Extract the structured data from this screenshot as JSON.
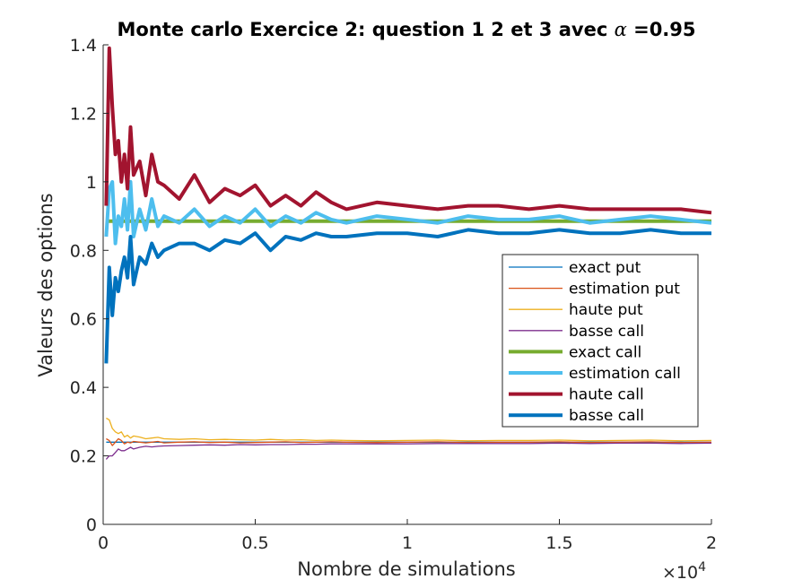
{
  "chart_data": {
    "type": "line",
    "title_prefix": "Monte carlo Exercice 2: question 1 2 et 3 avec ",
    "title_symbol": "α",
    "title_suffix": " =0.95",
    "xlabel": "Nombre de simulations",
    "ylabel": "Valeurs des options",
    "x_multiplier_base": "×10",
    "x_multiplier_exp": "4",
    "xlim": [
      0,
      20000
    ],
    "ylim": [
      0,
      1.4
    ],
    "x_ticks": [
      0,
      5000,
      10000,
      15000,
      20000
    ],
    "x_tick_labels": [
      "0",
      "0.5",
      "1",
      "1.5",
      "2"
    ],
    "y_ticks": [
      0,
      0.2,
      0.4,
      0.6,
      0.8,
      1.0,
      1.2,
      1.4
    ],
    "y_tick_labels": [
      "0",
      "0.2",
      "0.4",
      "0.6",
      "0.8",
      "1",
      "1.2",
      "1.4"
    ],
    "legend_position": "middle-right",
    "x": [
      100,
      200,
      300,
      400,
      500,
      600,
      700,
      800,
      900,
      1000,
      1200,
      1400,
      1600,
      1800,
      2000,
      2500,
      3000,
      3500,
      4000,
      4500,
      5000,
      5500,
      6000,
      6500,
      7000,
      7500,
      8000,
      9000,
      10000,
      11000,
      12000,
      13000,
      14000,
      15000,
      16000,
      17000,
      18000,
      19000,
      20000
    ],
    "series": [
      {
        "name": "exact put",
        "color": "#0072BD",
        "width": 1.3,
        "values": [
          0.24,
          0.24,
          0.24,
          0.24,
          0.24,
          0.24,
          0.24,
          0.24,
          0.24,
          0.24,
          0.24,
          0.24,
          0.24,
          0.24,
          0.24,
          0.24,
          0.24,
          0.24,
          0.24,
          0.24,
          0.24,
          0.24,
          0.24,
          0.24,
          0.24,
          0.24,
          0.24,
          0.24,
          0.24,
          0.24,
          0.24,
          0.24,
          0.24,
          0.24,
          0.24,
          0.24,
          0.24,
          0.24,
          0.24
        ]
      },
      {
        "name": "estimation put",
        "color": "#D95319",
        "width": 1.3,
        "values": [
          0.25,
          0.245,
          0.23,
          0.24,
          0.25,
          0.245,
          0.235,
          0.24,
          0.238,
          0.242,
          0.24,
          0.238,
          0.24,
          0.242,
          0.238,
          0.24,
          0.241,
          0.239,
          0.24,
          0.238,
          0.239,
          0.24,
          0.241,
          0.239,
          0.24,
          0.241,
          0.24,
          0.239,
          0.24,
          0.241,
          0.239,
          0.24,
          0.24,
          0.241,
          0.239,
          0.24,
          0.241,
          0.239,
          0.24
        ]
      },
      {
        "name": "haute put",
        "color": "#EDB120",
        "width": 1.3,
        "values": [
          0.31,
          0.305,
          0.28,
          0.27,
          0.265,
          0.27,
          0.255,
          0.26,
          0.252,
          0.258,
          0.255,
          0.25,
          0.252,
          0.254,
          0.25,
          0.248,
          0.25,
          0.247,
          0.248,
          0.247,
          0.246,
          0.248,
          0.246,
          0.247,
          0.245,
          0.246,
          0.245,
          0.244,
          0.245,
          0.246,
          0.244,
          0.245,
          0.245,
          0.246,
          0.244,
          0.245,
          0.246,
          0.244,
          0.245
        ]
      },
      {
        "name": "basse call",
        "color": "#7E2F8E",
        "width": 1.3,
        "values": [
          0.19,
          0.2,
          0.2,
          0.21,
          0.22,
          0.215,
          0.215,
          0.22,
          0.225,
          0.22,
          0.225,
          0.228,
          0.226,
          0.228,
          0.229,
          0.23,
          0.231,
          0.232,
          0.231,
          0.233,
          0.232,
          0.233,
          0.233,
          0.234,
          0.234,
          0.235,
          0.235,
          0.235,
          0.235,
          0.236,
          0.236,
          0.236,
          0.236,
          0.237,
          0.236,
          0.237,
          0.237,
          0.236,
          0.237
        ]
      },
      {
        "name": "exact call",
        "color": "#77AC30",
        "width": 4,
        "values": [
          0.885,
          0.885,
          0.885,
          0.885,
          0.885,
          0.885,
          0.885,
          0.885,
          0.885,
          0.885,
          0.885,
          0.885,
          0.885,
          0.885,
          0.885,
          0.885,
          0.885,
          0.885,
          0.885,
          0.885,
          0.885,
          0.885,
          0.885,
          0.885,
          0.885,
          0.885,
          0.885,
          0.885,
          0.885,
          0.885,
          0.885,
          0.885,
          0.885,
          0.885,
          0.885,
          0.885,
          0.885,
          0.885,
          0.885
        ]
      },
      {
        "name": "estimation call",
        "color": "#4DBEEE",
        "width": 4,
        "values": [
          0.84,
          0.98,
          1.0,
          0.82,
          0.9,
          0.87,
          0.95,
          0.86,
          1.0,
          0.84,
          0.92,
          0.86,
          0.95,
          0.87,
          0.9,
          0.88,
          0.92,
          0.87,
          0.9,
          0.88,
          0.92,
          0.87,
          0.9,
          0.88,
          0.91,
          0.89,
          0.88,
          0.9,
          0.89,
          0.88,
          0.9,
          0.89,
          0.89,
          0.9,
          0.88,
          0.89,
          0.9,
          0.89,
          0.88
        ]
      },
      {
        "name": "haute call",
        "color": "#A2142F",
        "width": 4,
        "values": [
          0.93,
          1.39,
          1.22,
          1.08,
          1.12,
          1.0,
          1.08,
          0.98,
          1.16,
          1.02,
          1.06,
          0.96,
          1.08,
          1.0,
          0.99,
          0.95,
          1.02,
          0.94,
          0.98,
          0.96,
          0.99,
          0.93,
          0.96,
          0.93,
          0.97,
          0.94,
          0.92,
          0.94,
          0.93,
          0.92,
          0.93,
          0.93,
          0.92,
          0.93,
          0.92,
          0.92,
          0.92,
          0.92,
          0.91
        ]
      },
      {
        "name": "basse call",
        "color": "#0072BD",
        "width": 4,
        "values": [
          0.47,
          0.75,
          0.61,
          0.72,
          0.68,
          0.74,
          0.78,
          0.72,
          0.84,
          0.7,
          0.78,
          0.76,
          0.82,
          0.78,
          0.8,
          0.82,
          0.82,
          0.8,
          0.83,
          0.82,
          0.85,
          0.8,
          0.84,
          0.83,
          0.85,
          0.84,
          0.84,
          0.85,
          0.85,
          0.84,
          0.86,
          0.85,
          0.85,
          0.86,
          0.85,
          0.85,
          0.86,
          0.85,
          0.85
        ]
      }
    ]
  }
}
